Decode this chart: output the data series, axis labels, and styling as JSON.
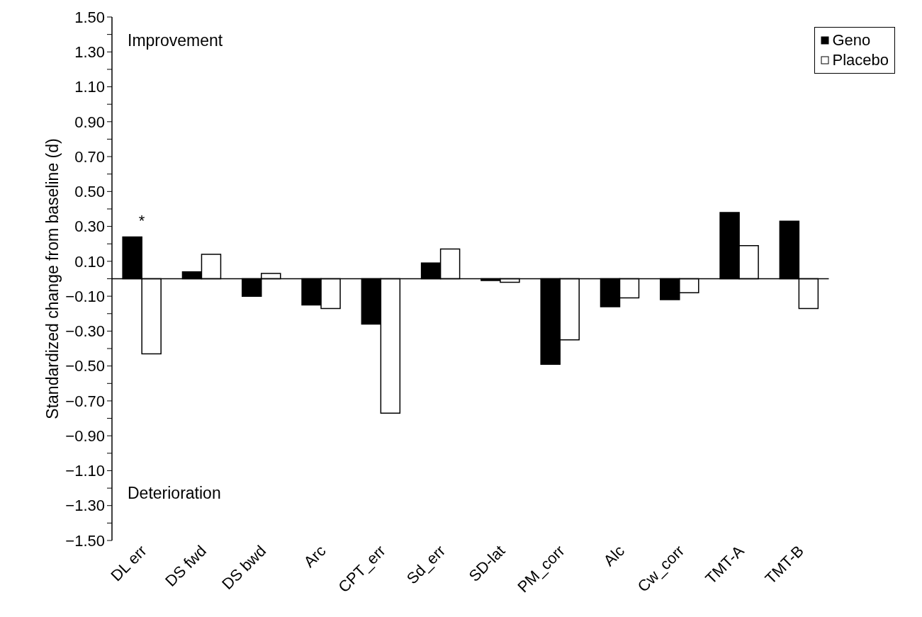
{
  "chart_data": {
    "type": "bar",
    "ylabel": "Standardized change from baseline (d)",
    "categories": [
      "DL err",
      "DS fwd",
      "DS bwd",
      "Arc",
      "CPT_err",
      "Sd_err",
      "SD-lat",
      "PM_corr",
      "Alc",
      "Cw_corr",
      "TMT-A",
      "TMT-B"
    ],
    "series": [
      {
        "name": "Geno",
        "color": "#000000",
        "values": [
          0.24,
          0.04,
          -0.1,
          -0.15,
          -0.26,
          0.09,
          -0.01,
          -0.49,
          -0.16,
          -0.12,
          0.38,
          0.33
        ]
      },
      {
        "name": "Placebo",
        "color": "#ffffff",
        "values": [
          -0.43,
          0.14,
          0.03,
          -0.17,
          -0.77,
          0.17,
          -0.02,
          -0.35,
          -0.11,
          -0.08,
          0.19,
          -0.17
        ]
      }
    ],
    "ylim": [
      -1.5,
      1.5
    ],
    "yticks": [
      {
        "value": -1.5,
        "label": "−1.50"
      },
      {
        "value": -1.4,
        "label": null
      },
      {
        "value": -1.3,
        "label": "−1.30"
      },
      {
        "value": -1.2,
        "label": null
      },
      {
        "value": -1.1,
        "label": "−1.10"
      },
      {
        "value": -1.0,
        "label": null
      },
      {
        "value": -0.9,
        "label": "−0.90"
      },
      {
        "value": -0.8,
        "label": null
      },
      {
        "value": -0.7,
        "label": "−0.70"
      },
      {
        "value": -0.6,
        "label": null
      },
      {
        "value": -0.5,
        "label": "−0.50"
      },
      {
        "value": -0.4,
        "label": null
      },
      {
        "value": -0.3,
        "label": "−0.30"
      },
      {
        "value": -0.2,
        "label": null
      },
      {
        "value": -0.1,
        "label": "−0.10"
      },
      {
        "value": 0,
        "label": null
      },
      {
        "value": 0.1,
        "label": "0.10"
      },
      {
        "value": 0.2,
        "label": null
      },
      {
        "value": 0.3,
        "label": "0.30"
      },
      {
        "value": 0.4,
        "label": null
      },
      {
        "value": 0.5,
        "label": "0.50"
      },
      {
        "value": 0.6,
        "label": null
      },
      {
        "value": 0.7,
        "label": "0.70"
      },
      {
        "value": 0.8,
        "label": null
      },
      {
        "value": 0.9,
        "label": "0.90"
      },
      {
        "value": 1.0,
        "label": null
      },
      {
        "value": 1.1,
        "label": "1.10"
      },
      {
        "value": 1.2,
        "label": null
      },
      {
        "value": 1.3,
        "label": "1.30"
      },
      {
        "value": 1.4,
        "label": null
      },
      {
        "value": 1.5,
        "label": "1.50"
      }
    ],
    "annotations": [
      {
        "text": "*",
        "x": "DL err",
        "y": 0.24
      },
      "Improvement",
      "Deterioration"
    ],
    "legend": "top right"
  }
}
